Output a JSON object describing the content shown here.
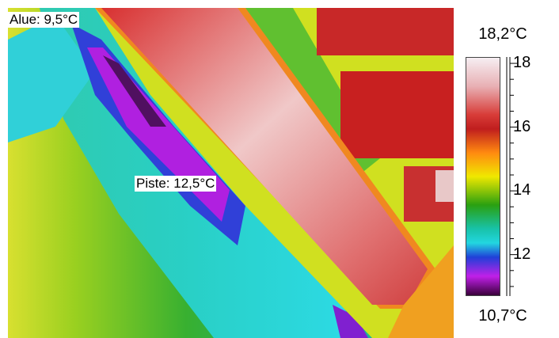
{
  "image": {
    "description_colors": {
      "hot": "#e24a4a",
      "warm": "#f0e800",
      "mid": "#2aa010",
      "cool": "#22d6e0",
      "cold": "#c020e8"
    }
  },
  "labels": {
    "area": "Alue: 9,5°C",
    "spot": "Piste: 12,5°C"
  },
  "scale": {
    "max": "18,2°C",
    "min": "10,7°C",
    "ticks": [
      {
        "label": "18",
        "value": 18
      },
      {
        "label": "16",
        "value": 16
      },
      {
        "label": "14",
        "value": 14
      },
      {
        "label": "12",
        "value": 12
      }
    ],
    "range": [
      10.7,
      18.2
    ]
  }
}
